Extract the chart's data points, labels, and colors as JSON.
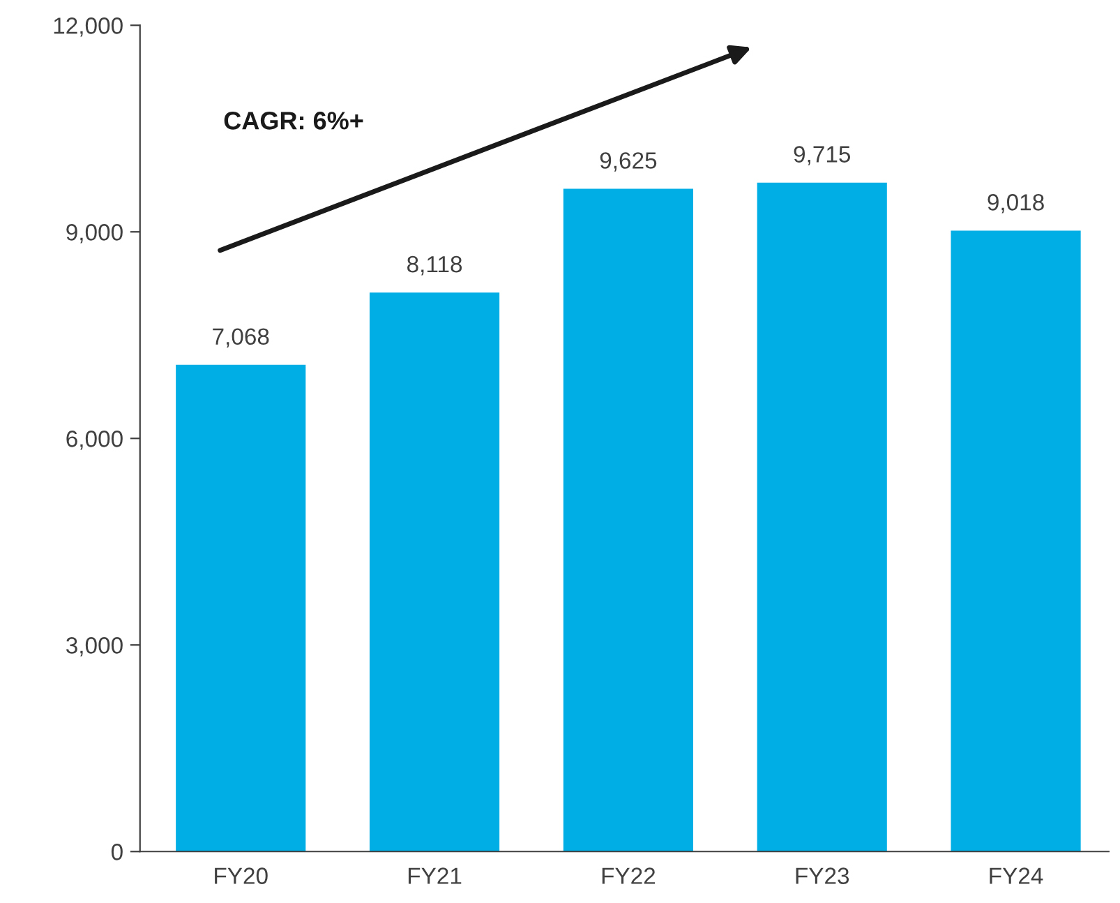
{
  "chart_data": {
    "type": "bar",
    "categories": [
      "FY20",
      "FY21",
      "FY22",
      "FY23",
      "FY24"
    ],
    "values": [
      7068,
      8118,
      9625,
      9715,
      9018
    ],
    "value_labels": [
      "7,068",
      "8,118",
      "9,625",
      "9,715",
      "9,018"
    ],
    "color": "#00aee6",
    "ylim": [
      0,
      12000
    ],
    "yticks": [
      {
        "value": 0,
        "label": "0"
      },
      {
        "value": 3000,
        "label": "3,000"
      },
      {
        "value": 6000,
        "label": "6,000"
      },
      {
        "value": 9000,
        "label": "9,000"
      },
      {
        "value": 12000,
        "label": "12,000"
      }
    ],
    "annotations": [
      "CAGR: 6%+"
    ],
    "grid": false,
    "legend": false
  }
}
